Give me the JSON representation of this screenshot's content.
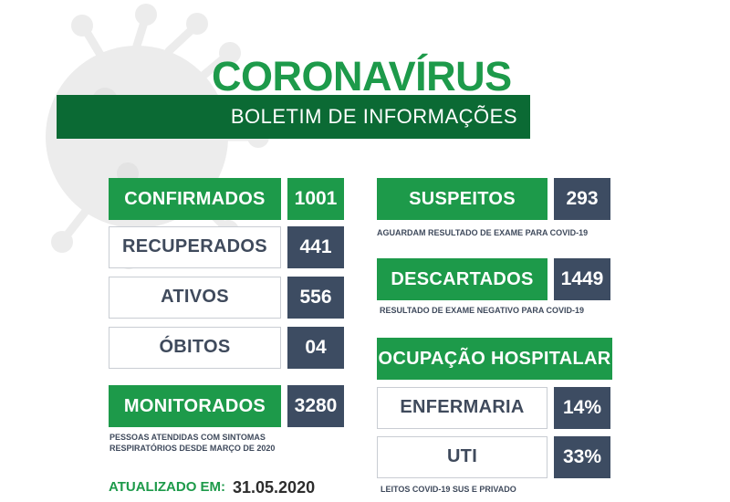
{
  "header": {
    "title": "CORONAVÍRUS",
    "subtitle": "BOLETIM DE INFORMAÇÕES"
  },
  "left_stats": [
    {
      "label": "CONFIRMADOS",
      "value": "1001"
    },
    {
      "label": "RECUPERADOS",
      "value": "441"
    },
    {
      "label": "ATIVOS",
      "value": "556"
    },
    {
      "label": "ÓBITOS",
      "value": "04"
    },
    {
      "label": "MONITORADOS",
      "value": "3280"
    }
  ],
  "monitored_note": [
    "PESSOAS ATENDIDAS COM SINTOMAS",
    "RESPIRATÓRIOS DESDE MARÇO DE 2020"
  ],
  "suspects": {
    "label": "SUSPEITOS",
    "value": "293",
    "note": "AGUARDAM RESULTADO DE EXAME PARA COVID-19"
  },
  "discarded": {
    "label": "DESCARTADOS",
    "value": "1449",
    "note": "RESULTADO DE EXAME NEGATIVO PARA COVID-19"
  },
  "hospital": {
    "title": "OCUPAÇÃO HOSPITALAR",
    "ward": {
      "label": "ENFERMARIA",
      "value": "14%"
    },
    "icu": {
      "label": "UTI",
      "value": "33%"
    },
    "note": "LEITOS COVID-19 SUS E PRIVADO"
  },
  "footer": {
    "updated_label": "ATUALIZADO EM:",
    "updated_date": "31.05.2020"
  },
  "colors": {
    "green": "#1d9a4a",
    "dark_green": "#0b6a34",
    "navy": "#3d4c62",
    "gray_text": "#3f4a5c",
    "virus_gray": "#ececec"
  }
}
